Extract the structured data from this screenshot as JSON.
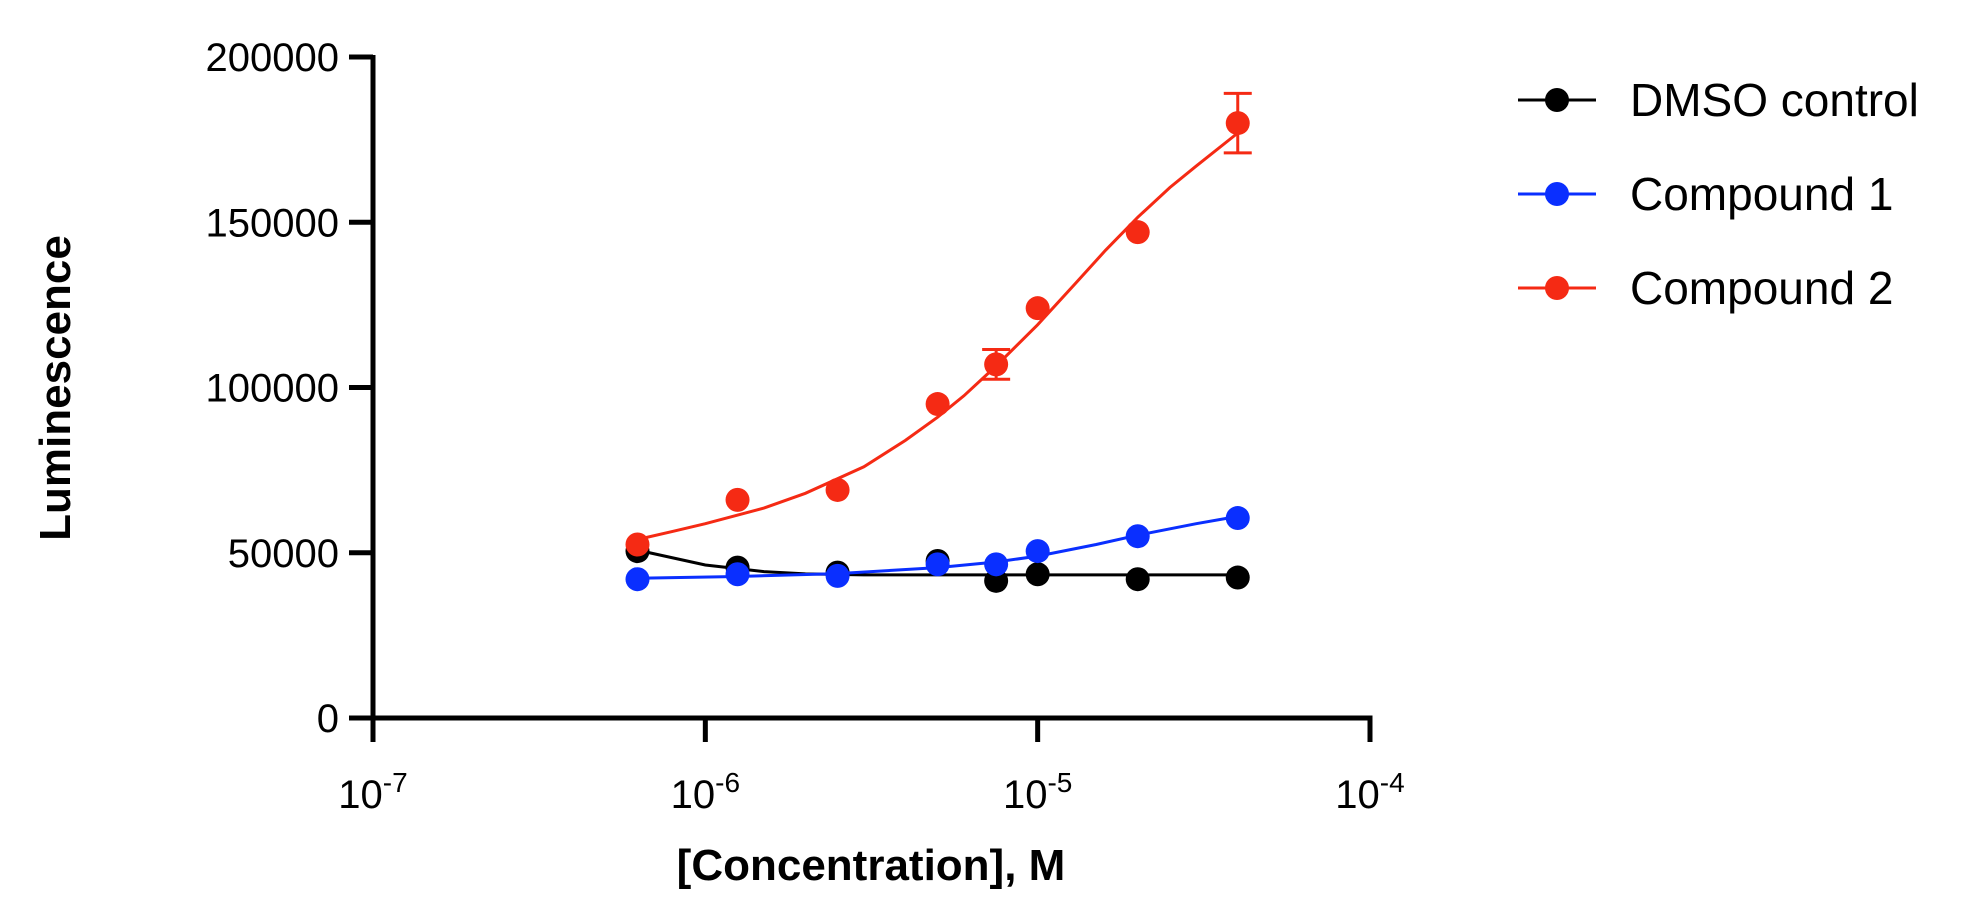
{
  "chart_data": {
    "type": "scatter",
    "xlabel": "[Concentration], M",
    "ylabel": "Luminescence",
    "x_scale": "log",
    "xlim": [
      1e-07,
      0.0001
    ],
    "ylim": [
      0,
      200000
    ],
    "x_ticks": [
      {
        "base": "10",
        "exp": "-7"
      },
      {
        "base": "10",
        "exp": "-6"
      },
      {
        "base": "10",
        "exp": "-5"
      },
      {
        "base": "10",
        "exp": "-4"
      }
    ],
    "y_ticks": [
      "0",
      "50000",
      "100000",
      "150000",
      "200000"
    ],
    "legend_position": "right",
    "grid": false,
    "series": [
      {
        "name": "DMSO control",
        "color": "#000000",
        "x": [
          6.25e-07,
          1.25e-06,
          2.5e-06,
          5e-06,
          7.5e-06,
          1e-05,
          2e-05,
          4e-05
        ],
        "y": [
          50500,
          45500,
          44000,
          47500,
          41500,
          43500,
          42000,
          42500
        ],
        "fit": [
          [
            6.25e-07,
            50800
          ],
          [
            1e-06,
            46300
          ],
          [
            1.5e-06,
            44300
          ],
          [
            2e-06,
            43600
          ],
          [
            3e-06,
            43300
          ],
          [
            5e-06,
            43300
          ],
          [
            1e-05,
            43300
          ],
          [
            2e-05,
            43300
          ],
          [
            4e-05,
            43300
          ]
        ]
      },
      {
        "name": "Compound 1",
        "color": "#0a2fff",
        "x": [
          6.25e-07,
          1.25e-06,
          2.5e-06,
          5e-06,
          7.5e-06,
          1e-05,
          2e-05,
          4e-05
        ],
        "y": [
          42000,
          43500,
          43000,
          46500,
          46500,
          50500,
          55000,
          60500
        ],
        "fit": [
          [
            6.25e-07,
            42300
          ],
          [
            1.25e-06,
            42800
          ],
          [
            2.5e-06,
            43700
          ],
          [
            5e-06,
            45500
          ],
          [
            7.5e-06,
            47200
          ],
          [
            1e-05,
            49000
          ],
          [
            1.5e-05,
            52500
          ],
          [
            2e-05,
            55300
          ],
          [
            3e-05,
            58800
          ],
          [
            4e-05,
            61000
          ]
        ]
      },
      {
        "name": "Compound 2",
        "color": "#f52a14",
        "x": [
          6.25e-07,
          1.25e-06,
          2.5e-06,
          5e-06,
          7.5e-06,
          1e-05,
          2e-05,
          4e-05
        ],
        "y": [
          52500,
          66000,
          69000,
          95000,
          107000,
          124000,
          147000,
          180000
        ],
        "error": [
          0,
          0,
          0,
          0,
          4500,
          0,
          0,
          9000
        ],
        "fit": [
          [
            6.25e-07,
            54000
          ],
          [
            8e-07,
            56500
          ],
          [
            1e-06,
            58800
          ],
          [
            1.5e-06,
            63500
          ],
          [
            2e-06,
            68000
          ],
          [
            3e-06,
            76000
          ],
          [
            4e-06,
            84000
          ],
          [
            5e-06,
            91000
          ],
          [
            6e-06,
            97500
          ],
          [
            7.5e-06,
            106500
          ],
          [
            1e-05,
            119000
          ],
          [
            1.3e-05,
            131500
          ],
          [
            1.6e-05,
            141500
          ],
          [
            2e-05,
            151500
          ],
          [
            2.5e-05,
            160500
          ],
          [
            3e-05,
            167000
          ],
          [
            4e-05,
            177000
          ]
        ]
      }
    ]
  }
}
